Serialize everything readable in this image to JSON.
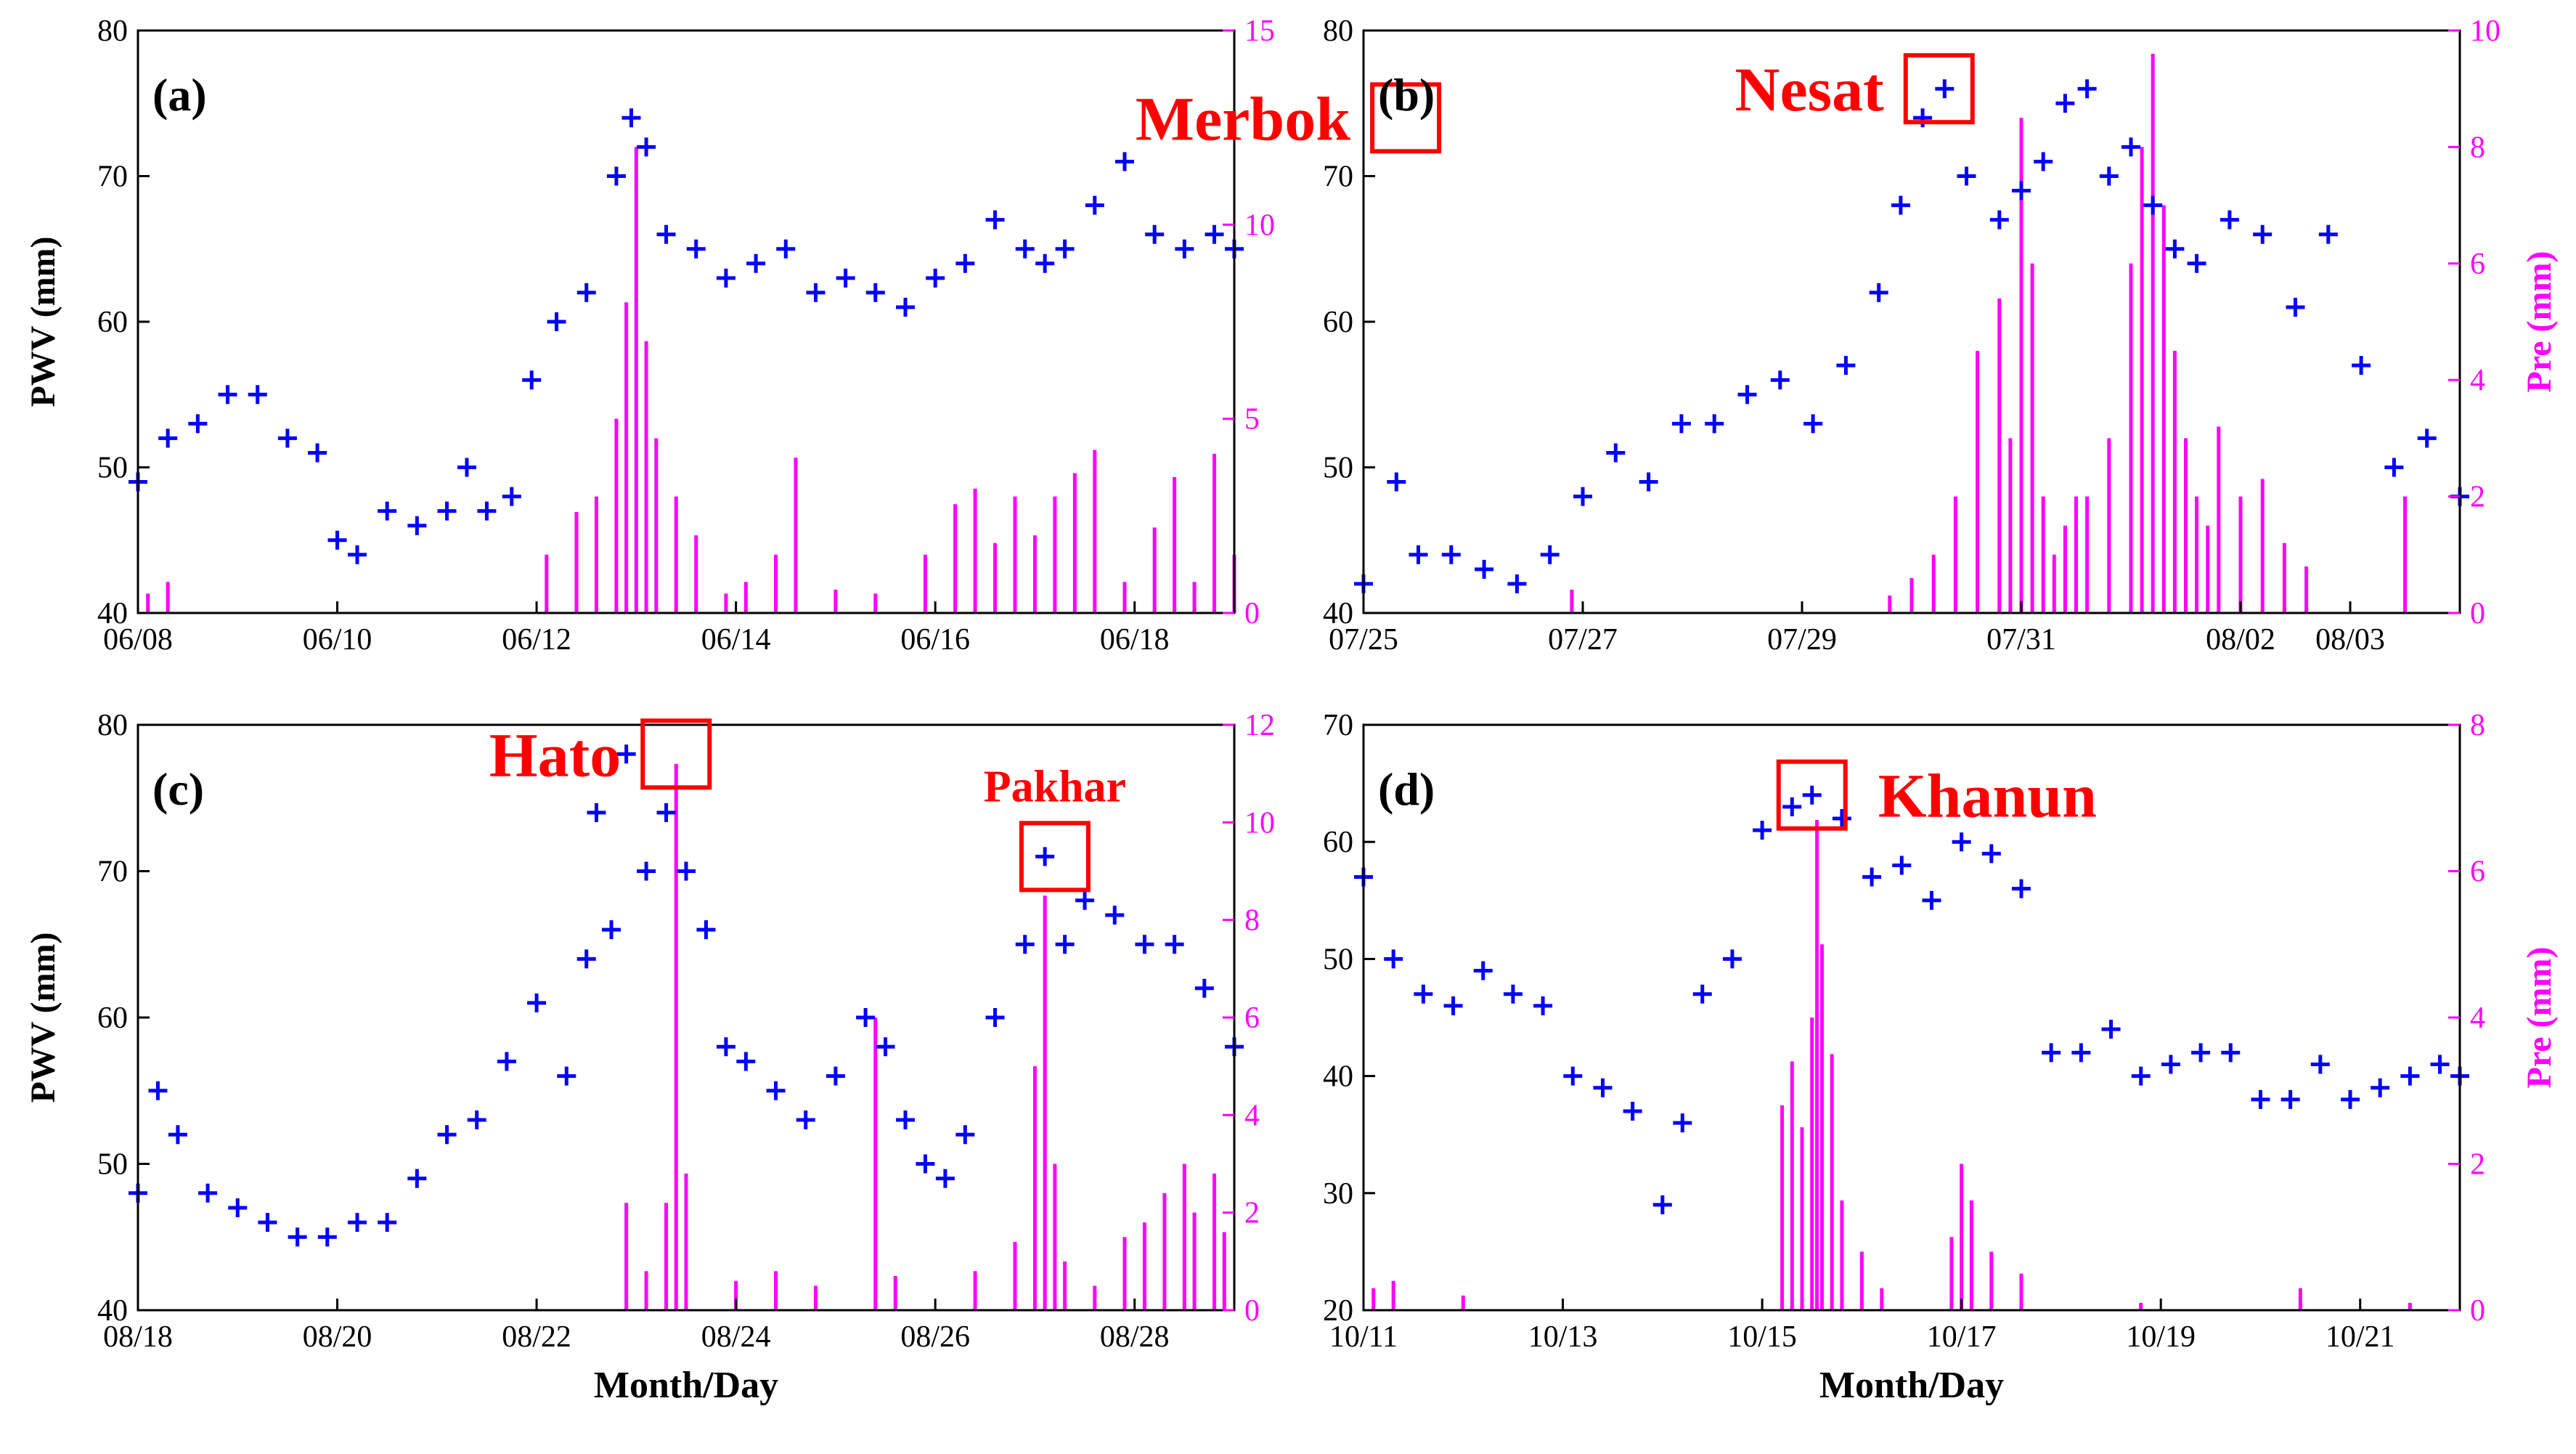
{
  "chart_data": [
    {
      "type": "scatter",
      "panel_label": "(a)",
      "typhoons": [
        {
          "name": "Merbok",
          "day": 12.72,
          "pwv": 74,
          "size": "large"
        }
      ],
      "ylabel_left": "PWV (mm)",
      "ylabel_right": "",
      "xlabel": "",
      "ylim_left": [
        40,
        80
      ],
      "yticks_left": [
        40,
        50,
        60,
        70,
        80
      ],
      "ylim_right": [
        0,
        15
      ],
      "yticks_right": [
        0,
        5,
        10,
        15
      ],
      "xlim": [
        0,
        11
      ],
      "xticks": [
        {
          "pos": 0,
          "label": "06/08"
        },
        {
          "pos": 2,
          "label": "06/10"
        },
        {
          "pos": 4,
          "label": "06/12"
        },
        {
          "pos": 6,
          "label": "06/14"
        },
        {
          "pos": 8,
          "label": "06/16"
        },
        {
          "pos": 10,
          "label": "06/18"
        }
      ],
      "series": [
        {
          "name": "PWV",
          "color": "#0000ff",
          "marker": "+",
          "x": [
            0,
            0.3,
            0.6,
            0.9,
            1.2,
            1.5,
            1.8,
            2.0,
            2.2,
            2.5,
            2.8,
            3.1,
            3.3,
            3.5,
            3.75,
            3.95,
            4.2,
            4.5,
            4.8,
            4.95,
            5.1,
            5.3,
            5.6,
            5.9,
            6.2,
            6.5,
            6.8,
            7.1,
            7.4,
            7.7,
            8.0,
            8.3,
            8.6,
            8.9,
            9.1,
            9.3,
            9.6,
            9.9,
            10.2,
            10.5,
            10.8,
            11.0
          ],
          "y": [
            49,
            52,
            53,
            55,
            55,
            52,
            51,
            45,
            44,
            47,
            46,
            47,
            50,
            47,
            48,
            56,
            60,
            62,
            70,
            74,
            72,
            66,
            65,
            63,
            64,
            65,
            62,
            63,
            62,
            61,
            63,
            64,
            67,
            65,
            64,
            65,
            68,
            71,
            66,
            65,
            66,
            65
          ]
        },
        {
          "name": "Pre",
          "color": "#ff00ff",
          "marker": "bar",
          "axis": "right",
          "x": [
            0.1,
            0.3,
            4.1,
            4.4,
            4.6,
            4.8,
            4.9,
            5.0,
            5.1,
            5.2,
            5.4,
            5.6,
            5.9,
            6.1,
            6.4,
            6.6,
            7.0,
            7.4,
            7.9,
            8.2,
            8.4,
            8.6,
            8.8,
            9.0,
            9.2,
            9.4,
            9.6,
            9.9,
            10.2,
            10.4,
            10.6,
            10.8,
            11.0
          ],
          "y": [
            0.5,
            0.8,
            1.5,
            2.6,
            3.0,
            5.0,
            8.0,
            12.0,
            7.0,
            4.5,
            3.0,
            2.0,
            0.5,
            0.8,
            1.5,
            4.0,
            0.6,
            0.5,
            1.5,
            2.8,
            3.2,
            1.8,
            3.0,
            2.0,
            3.0,
            3.6,
            4.2,
            0.8,
            2.2,
            3.5,
            0.8,
            4.1,
            1.5
          ]
        }
      ]
    },
    {
      "type": "scatter",
      "panel_label": "(b)",
      "typhoons": [
        {
          "name": "Nesat",
          "day": 5.25,
          "pwv": 76,
          "size": "large"
        }
      ],
      "ylabel_left": "",
      "ylabel_right": "Pre (mm)",
      "xlabel": "",
      "ylim_left": [
        40,
        80
      ],
      "yticks_left": [
        40,
        50,
        60,
        70,
        80
      ],
      "ylim_right": [
        0,
        10
      ],
      "yticks_right": [
        0,
        2,
        4,
        6,
        8,
        10
      ],
      "xlim": [
        0,
        10
      ],
      "xticks": [
        {
          "pos": 0,
          "label": "07/25"
        },
        {
          "pos": 2,
          "label": "07/27"
        },
        {
          "pos": 4,
          "label": "07/29"
        },
        {
          "pos": 6,
          "label": "07/31"
        },
        {
          "pos": 8,
          "label": "08/02"
        },
        {
          "pos": 9,
          "label": "08/03"
        }
      ],
      "series": [
        {
          "name": "PWV",
          "color": "#0000ff",
          "marker": "+",
          "x": [
            0,
            0.3,
            0.5,
            0.8,
            1.1,
            1.4,
            1.7,
            2.0,
            2.3,
            2.6,
            2.9,
            3.2,
            3.5,
            3.8,
            4.1,
            4.4,
            4.7,
            4.9,
            5.1,
            5.3,
            5.5,
            5.8,
            6.0,
            6.2,
            6.4,
            6.6,
            6.8,
            7.0,
            7.2,
            7.4,
            7.6,
            7.9,
            8.2,
            8.5,
            8.8,
            9.1,
            9.4,
            9.7,
            10.0
          ],
          "y": [
            42,
            49,
            44,
            44,
            43,
            42,
            44,
            48,
            51,
            49,
            53,
            53,
            55,
            56,
            53,
            57,
            62,
            68,
            74,
            76,
            70,
            67,
            69,
            71,
            75,
            76,
            70,
            72,
            68,
            65,
            64,
            67,
            66,
            61,
            66,
            57,
            50,
            52,
            48
          ]
        },
        {
          "name": "Pre",
          "color": "#ff00ff",
          "marker": "bar",
          "axis": "right",
          "x": [
            1.9,
            4.8,
            5.0,
            5.2,
            5.4,
            5.6,
            5.8,
            5.9,
            6.0,
            6.1,
            6.2,
            6.3,
            6.4,
            6.5,
            6.6,
            6.8,
            7.0,
            7.1,
            7.2,
            7.3,
            7.4,
            7.5,
            7.6,
            7.7,
            7.8,
            8.0,
            8.2,
            8.4,
            8.6,
            9.5
          ],
          "y": [
            0.4,
            0.3,
            0.6,
            1.0,
            2.0,
            4.5,
            5.4,
            3.0,
            8.5,
            6.0,
            2.0,
            1.0,
            1.5,
            2.0,
            2.0,
            3.0,
            6.0,
            8.0,
            9.6,
            7.0,
            4.5,
            3.0,
            2.0,
            1.5,
            3.2,
            2.0,
            2.3,
            1.2,
            0.8,
            2.0
          ]
        }
      ]
    },
    {
      "type": "scatter",
      "panel_label": "(c)",
      "typhoons": [
        {
          "name": "Hato",
          "day": 5.4,
          "pwv": 78,
          "size": "large"
        },
        {
          "name": "Pakhar",
          "day": 9.2,
          "pwv": 71,
          "size": "small"
        }
      ],
      "ylabel_left": "PWV (mm)",
      "ylabel_right": "",
      "xlabel": "Month/Day",
      "ylim_left": [
        40,
        80
      ],
      "yticks_left": [
        40,
        50,
        60,
        70,
        80
      ],
      "ylim_right": [
        0,
        12
      ],
      "yticks_right": [
        0,
        2,
        4,
        6,
        8,
        10,
        12
      ],
      "xlim": [
        0,
        11
      ],
      "xticks": [
        {
          "pos": 0,
          "label": "08/18"
        },
        {
          "pos": 2,
          "label": "08/20"
        },
        {
          "pos": 4,
          "label": "08/22"
        },
        {
          "pos": 6,
          "label": "08/24"
        },
        {
          "pos": 8,
          "label": "08/26"
        },
        {
          "pos": 10,
          "label": "08/28"
        }
      ],
      "series": [
        {
          "name": "PWV",
          "color": "#0000ff",
          "marker": "+",
          "x": [
            0,
            0.2,
            0.4,
            0.7,
            1.0,
            1.3,
            1.6,
            1.9,
            2.2,
            2.5,
            2.8,
            3.1,
            3.4,
            3.7,
            4.0,
            4.3,
            4.5,
            4.6,
            4.75,
            4.9,
            5.1,
            5.3,
            5.5,
            5.7,
            5.9,
            6.1,
            6.4,
            6.7,
            7.0,
            7.3,
            7.5,
            7.7,
            7.9,
            8.1,
            8.3,
            8.6,
            8.9,
            9.1,
            9.3,
            9.5,
            9.8,
            10.1,
            10.4,
            10.7,
            11.0
          ],
          "y": [
            48,
            55,
            52,
            48,
            47,
            46,
            45,
            45,
            46,
            46,
            49,
            52,
            53,
            57,
            61,
            56,
            64,
            74,
            66,
            78,
            70,
            74,
            70,
            66,
            58,
            57,
            55,
            53,
            56,
            60,
            58,
            53,
            50,
            49,
            52,
            60,
            65,
            71,
            65,
            68,
            67,
            65,
            65,
            62,
            58
          ]
        },
        {
          "name": "Pre",
          "color": "#ff00ff",
          "marker": "bar",
          "axis": "right",
          "x": [
            4.9,
            5.1,
            5.3,
            5.4,
            5.5,
            6.0,
            6.4,
            6.8,
            7.4,
            7.6,
            8.4,
            8.8,
            9.0,
            9.1,
            9.2,
            9.3,
            9.6,
            9.9,
            10.1,
            10.3,
            10.5,
            10.6,
            10.8,
            10.9
          ],
          "y": [
            2.2,
            0.8,
            2.2,
            11.2,
            2.8,
            0.6,
            0.8,
            0.5,
            6.0,
            0.7,
            0.8,
            1.4,
            5.0,
            8.5,
            3.0,
            1.0,
            0.5,
            1.5,
            1.8,
            2.4,
            3.0,
            2.0,
            2.8,
            1.6
          ]
        }
      ]
    },
    {
      "type": "scatter",
      "panel_label": "(d)",
      "typhoons": [
        {
          "name": "Khanun",
          "day": 4.5,
          "pwv": 64,
          "size": "large"
        }
      ],
      "ylabel_left": "",
      "ylabel_right": "Pre (mm)",
      "xlabel": "Month/Day",
      "ylim_left": [
        20,
        70
      ],
      "yticks_left": [
        20,
        30,
        40,
        50,
        60,
        70
      ],
      "ylim_right": [
        0,
        8
      ],
      "yticks_right": [
        0,
        2,
        4,
        6,
        8
      ],
      "xlim": [
        0,
        11
      ],
      "xticks": [
        {
          "pos": 0,
          "label": "10/11"
        },
        {
          "pos": 2,
          "label": "10/13"
        },
        {
          "pos": 4,
          "label": "10/15"
        },
        {
          "pos": 6,
          "label": "10/17"
        },
        {
          "pos": 8,
          "label": "10/19"
        },
        {
          "pos": 10,
          "label": "10/21"
        }
      ],
      "series": [
        {
          "name": "PWV",
          "color": "#0000ff",
          "marker": "+",
          "x": [
            0,
            0.3,
            0.6,
            0.9,
            1.2,
            1.5,
            1.8,
            2.1,
            2.4,
            2.7,
            3.0,
            3.2,
            3.4,
            3.7,
            4.0,
            4.3,
            4.5,
            4.8,
            5.1,
            5.4,
            5.7,
            6.0,
            6.3,
            6.6,
            6.9,
            7.2,
            7.5,
            7.8,
            8.1,
            8.4,
            8.7,
            9.0,
            9.3,
            9.6,
            9.9,
            10.2,
            10.5,
            10.8,
            11.0
          ],
          "y": [
            57,
            50,
            47,
            46,
            49,
            47,
            46,
            40,
            39,
            37,
            29,
            36,
            47,
            50,
            61,
            63,
            64,
            62,
            57,
            58,
            55,
            60,
            59,
            56,
            42,
            42,
            44,
            40,
            41,
            42,
            42,
            38,
            38,
            41,
            38,
            39,
            40,
            41,
            40
          ]
        },
        {
          "name": "Pre",
          "color": "#ff00ff",
          "marker": "bar",
          "axis": "right",
          "x": [
            0.1,
            0.3,
            1.0,
            4.2,
            4.3,
            4.4,
            4.5,
            4.55,
            4.6,
            4.7,
            4.8,
            5.0,
            5.2,
            5.9,
            6.0,
            6.1,
            6.3,
            6.6,
            7.8,
            9.4,
            10.5
          ],
          "y": [
            0.3,
            0.4,
            0.2,
            2.8,
            3.4,
            2.5,
            4.0,
            6.7,
            5.0,
            3.5,
            1.5,
            0.8,
            0.3,
            1.0,
            2.0,
            1.5,
            0.8,
            0.5,
            0.1,
            0.3,
            0.1
          ]
        }
      ]
    }
  ]
}
